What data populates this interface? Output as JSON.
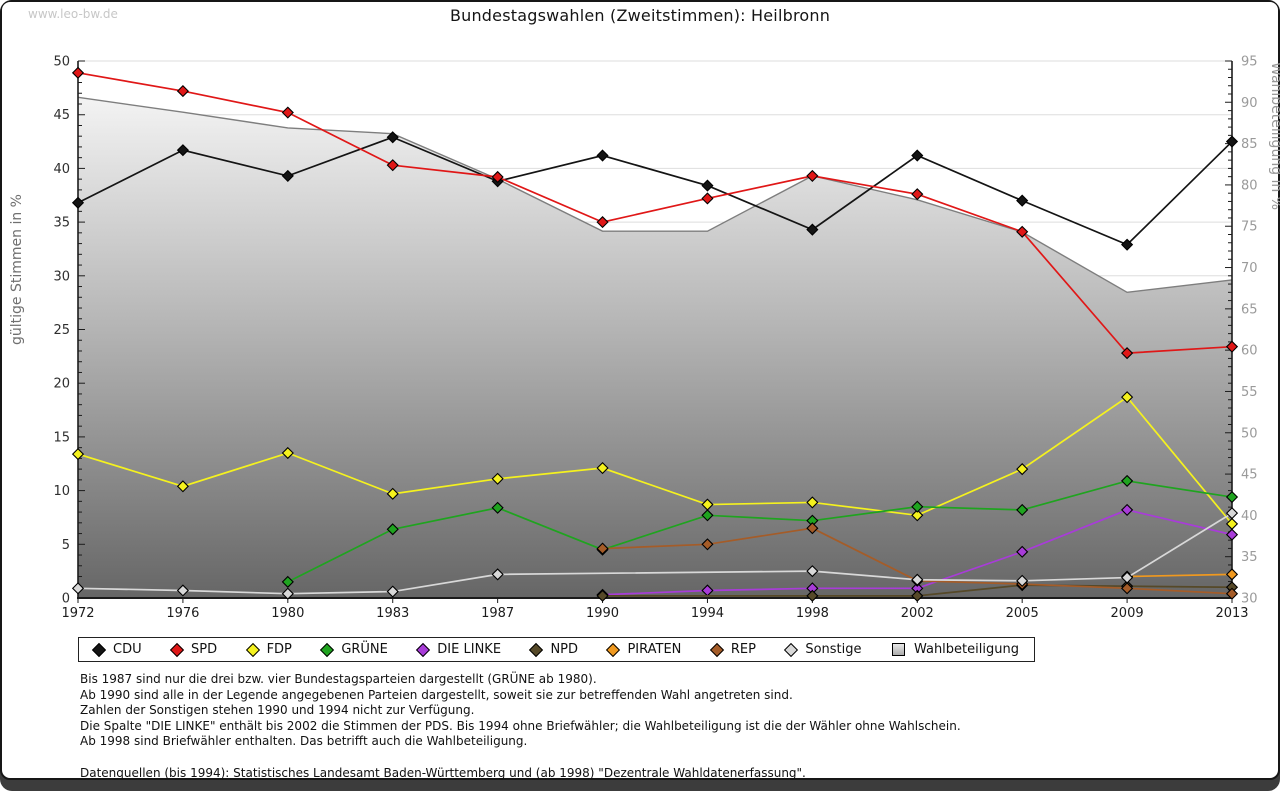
{
  "watermark": "www.leo-bw.de",
  "title": "Bundestagswahlen (Zweitstimmen): Heilbronn",
  "chart_data": {
    "type": "line",
    "title": "Bundestagswahlen (Zweitstimmen): Heilbronn",
    "categories": [
      "1972",
      "1976",
      "1980",
      "1983",
      "1987",
      "1990",
      "1994",
      "1998",
      "2002",
      "2005",
      "2009",
      "2013"
    ],
    "left_axis": {
      "label": "gültige Stimmen in %",
      "min": 0,
      "max": 50,
      "major_step": 5,
      "minor_step": 1
    },
    "right_axis": {
      "label": "Wahlbeteiligung in %",
      "min": 30,
      "max": 95,
      "major_step": 5,
      "minor_step": 1
    },
    "grid": true,
    "legend_position": "bottom",
    "series": [
      {
        "name": "CDU",
        "color": "#141414",
        "axis": "left",
        "marker": "diamond",
        "values": [
          36.8,
          41.7,
          39.3,
          42.9,
          38.8,
          41.2,
          38.4,
          34.3,
          41.2,
          37.0,
          32.9,
          42.5
        ]
      },
      {
        "name": "SPD",
        "color": "#e01717",
        "axis": "left",
        "marker": "diamond",
        "values": [
          48.9,
          47.2,
          45.2,
          40.3,
          39.2,
          35.0,
          37.2,
          39.3,
          37.6,
          34.1,
          22.8,
          23.4
        ]
      },
      {
        "name": "FDP",
        "color": "#f5f21e",
        "axis": "left",
        "marker": "diamond",
        "values": [
          13.4,
          10.4,
          13.5,
          9.7,
          11.1,
          12.1,
          8.7,
          8.9,
          7.7,
          12.0,
          18.7,
          6.9
        ]
      },
      {
        "name": "GRÜNE",
        "color": "#1fa41f",
        "axis": "left",
        "marker": "diamond",
        "values": [
          null,
          null,
          1.5,
          6.4,
          8.4,
          4.5,
          7.7,
          7.2,
          8.5,
          8.2,
          10.9,
          9.4
        ]
      },
      {
        "name": "DIE LINKE",
        "color": "#a83cd8",
        "axis": "left",
        "marker": "diamond",
        "values": [
          null,
          null,
          null,
          null,
          null,
          0.3,
          0.7,
          0.9,
          0.9,
          4.3,
          8.2,
          5.9
        ]
      },
      {
        "name": "NPD",
        "color": "#564928",
        "axis": "left",
        "marker": "diamond",
        "values": [
          null,
          null,
          null,
          null,
          null,
          0.2,
          null,
          0.2,
          0.2,
          1.2,
          1.1,
          1.0
        ]
      },
      {
        "name": "PIRATEN",
        "color": "#f0991f",
        "axis": "left",
        "marker": "diamond",
        "values": [
          null,
          null,
          null,
          null,
          null,
          null,
          null,
          null,
          null,
          null,
          2.0,
          2.2
        ]
      },
      {
        "name": "REP",
        "color": "#a55c28",
        "axis": "left",
        "marker": "diamond",
        "values": [
          null,
          null,
          null,
          null,
          null,
          4.6,
          5.0,
          6.5,
          1.6,
          1.3,
          0.9,
          0.4
        ]
      },
      {
        "name": "Sonstige",
        "color": "#d8d8d8",
        "axis": "left",
        "marker": "diamond",
        "values": [
          0.9,
          0.7,
          0.4,
          0.6,
          2.2,
          null,
          null,
          2.5,
          1.7,
          1.6,
          1.9,
          7.9
        ]
      },
      {
        "name": "Wahlbeteiligung",
        "color": "#7e7e7e",
        "axis": "right",
        "marker": "none",
        "style": "area",
        "values": [
          90.6,
          88.8,
          86.9,
          86.2,
          80.7,
          74.4,
          74.4,
          81.1,
          78.2,
          74.3,
          67.0,
          68.5
        ]
      }
    ]
  },
  "notes": {
    "lines": [
      "Bis 1987 sind nur die drei bzw. vier Bundestagsparteien dargestellt (GRÜNE ab 1980).",
      "Ab 1990 sind alle in der Legende angegebenen Parteien dargestellt, soweit sie zur betreffenden Wahl angetreten sind.",
      "Zahlen der Sonstigen stehen 1990 und 1994 nicht zur Verfügung.",
      "Die Spalte \"DIE LINKE\" enthält bis 2002 die Stimmen der PDS. Bis 1994 ohne Briefwähler; die Wahlbeteiligung ist die der Wähler ohne Wahlschein.",
      "Ab 1998 sind Briefwähler enthalten. Das betrifft auch die Wahlbeteiligung."
    ],
    "source": "Datenquellen (bis 1994): Statistisches Landesamt Baden-Württemberg und (ab 1998) \"Dezentrale Wahldatenerfassung\"."
  }
}
